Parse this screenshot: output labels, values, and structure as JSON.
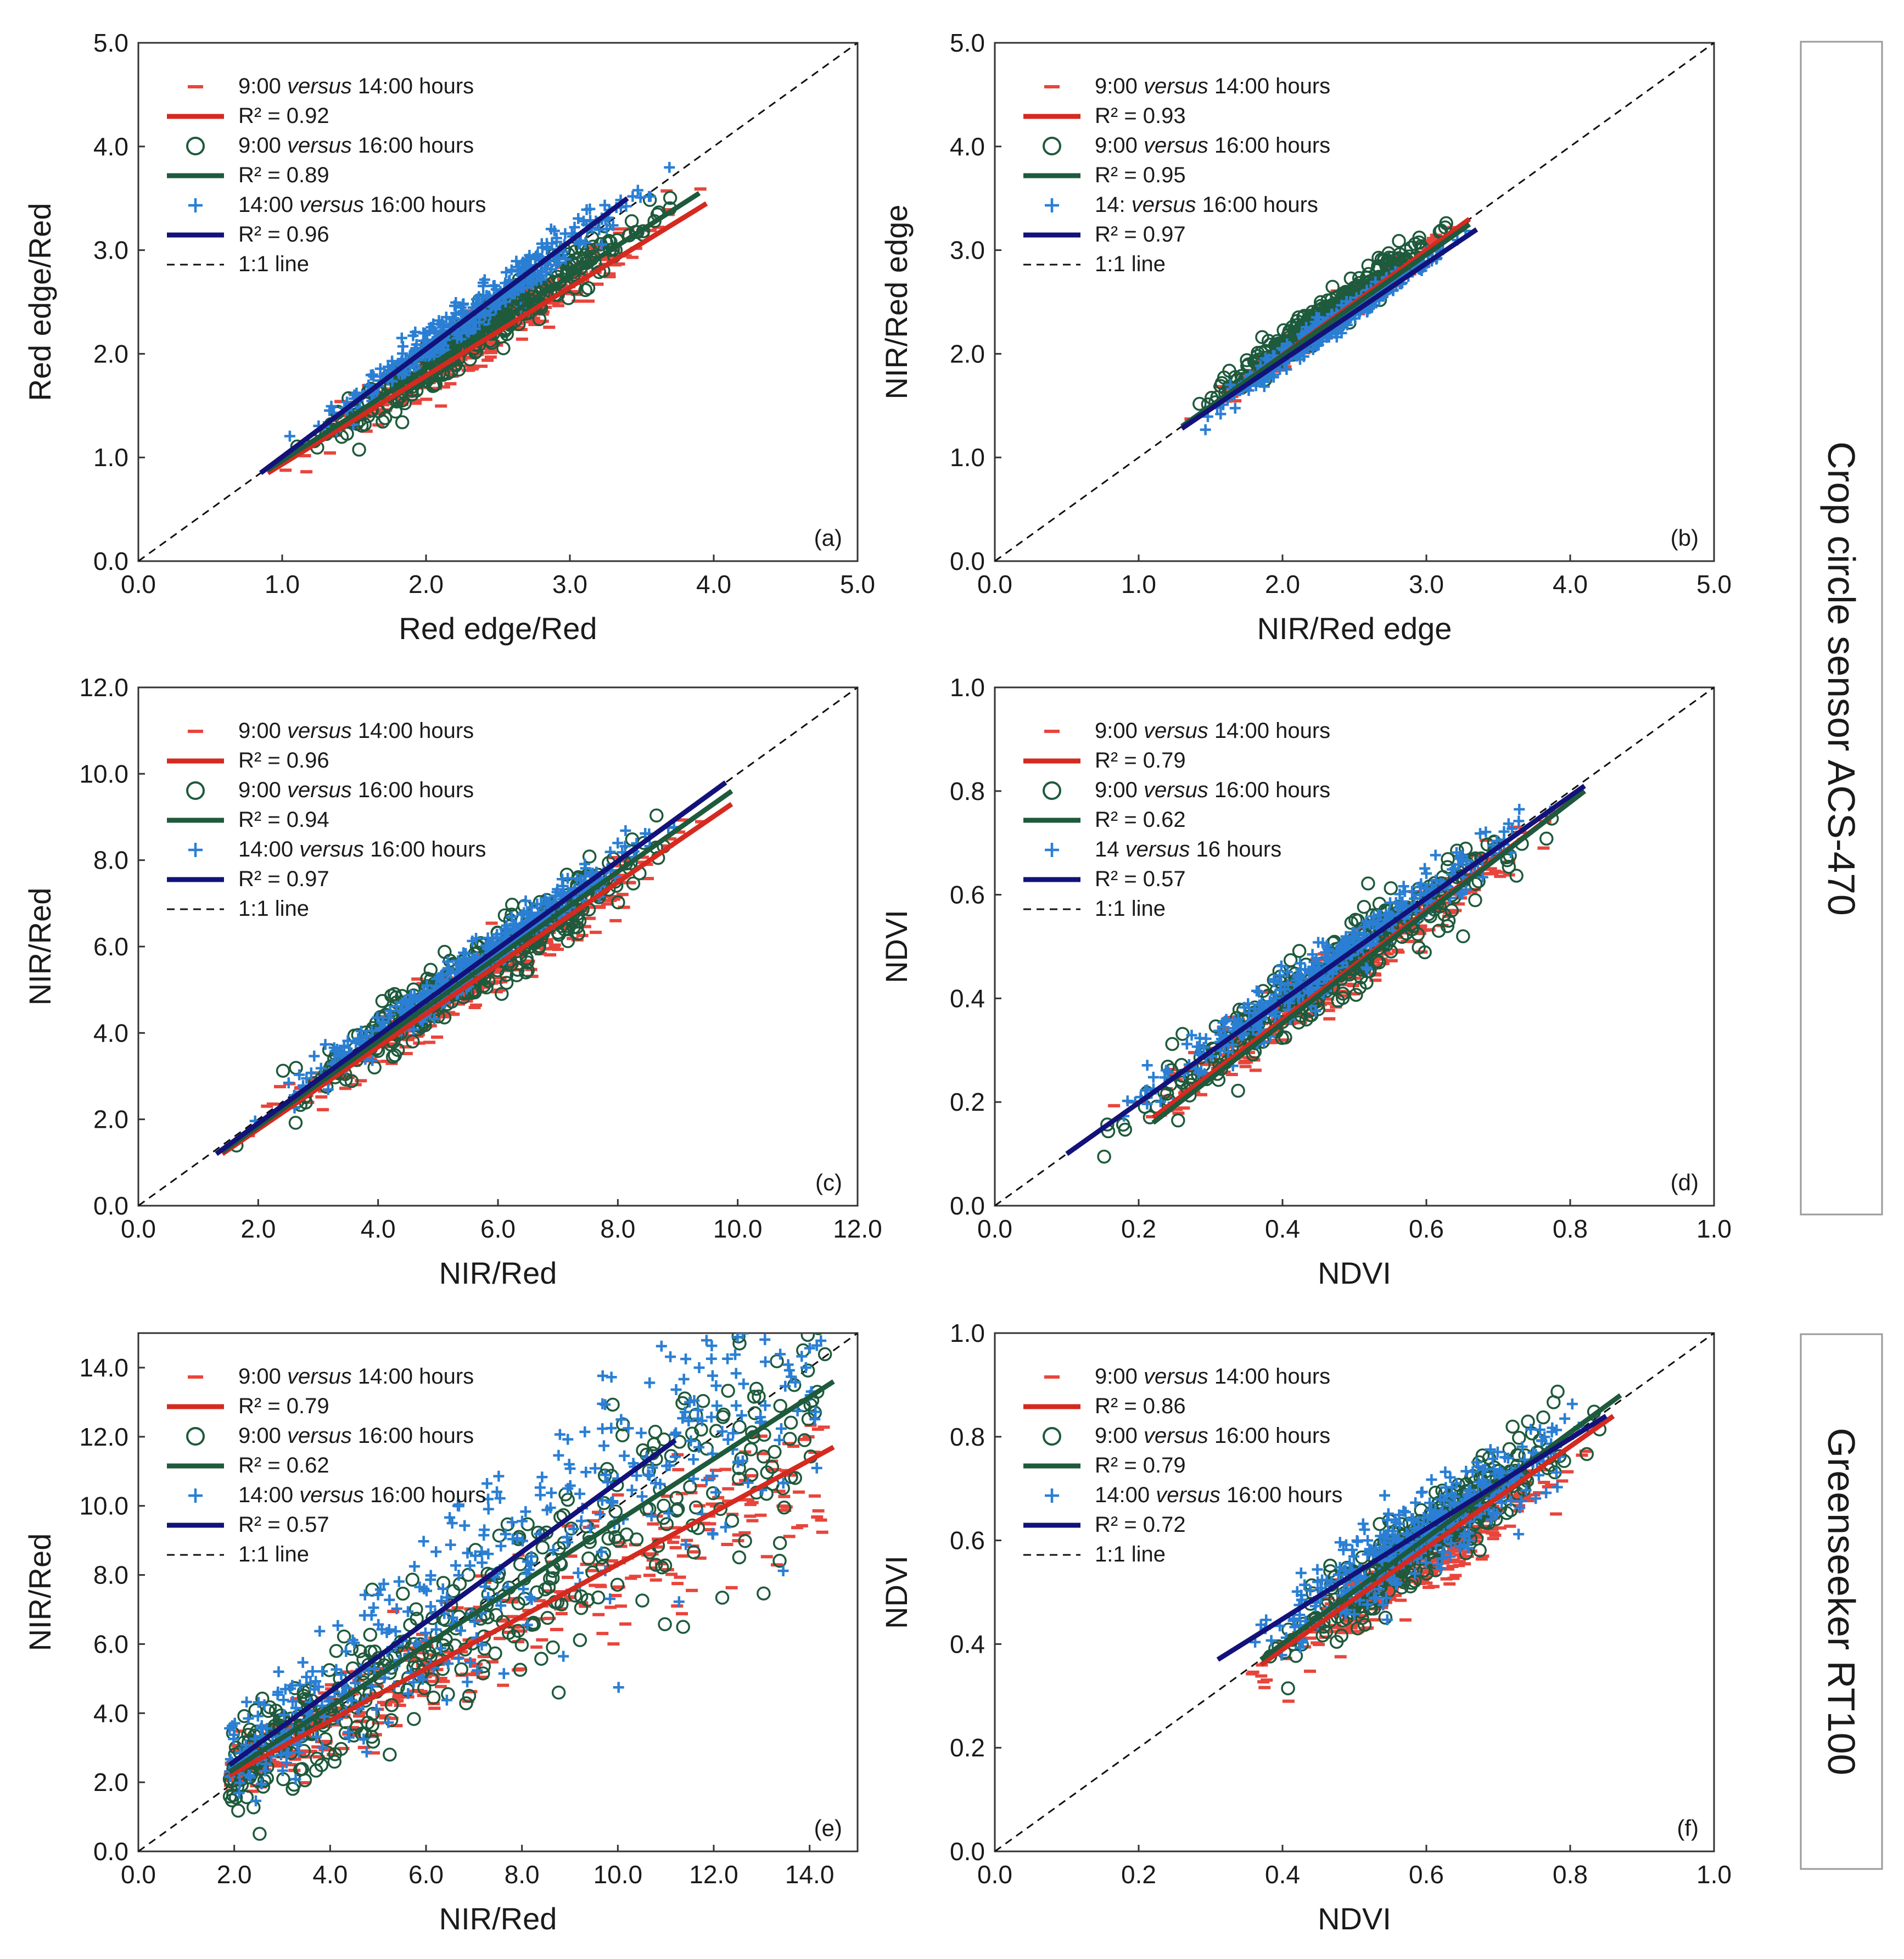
{
  "colors": {
    "series_14": "#e8453c",
    "series_16": "#1e5a3c",
    "series_14_16": "#2a7fd4",
    "fit_14": "#d42a20",
    "fit_16": "#1e5a3c",
    "fit_14_16": "#13127a",
    "axis": "#333333"
  },
  "side_labels": {
    "top": "Crop circle sensor ACS-470",
    "bottom": "Greenseeker RT100"
  },
  "chart_data": [
    {
      "id": "a",
      "panel_label": "(a)",
      "type": "scatter",
      "xlabel": "Red edge/Red",
      "ylabel": "Red edge/Red",
      "xlim": [
        0,
        5
      ],
      "ylim": [
        0,
        5
      ],
      "xticks": [
        "0.0",
        "1.0",
        "2.0",
        "3.0",
        "4.0",
        "5.0"
      ],
      "yticks": [
        "0.0",
        "1.0",
        "2.0",
        "3.0",
        "4.0",
        "5.0"
      ],
      "legend": [
        {
          "marker": "dash",
          "pre": "9:00 ",
          "it": "versus",
          "post": " 14:00 hours"
        },
        {
          "marker": "line-red",
          "pre": "R² = 0.92",
          "it": "",
          "post": ""
        },
        {
          "marker": "circle",
          "pre": "9:00 ",
          "it": "versus",
          "post": " 16:00 hours"
        },
        {
          "marker": "line-green",
          "pre": "R² = 0.89",
          "it": "",
          "post": ""
        },
        {
          "marker": "plus",
          "pre": "14:00 ",
          "it": "versus",
          "post": " 16:00 hours"
        },
        {
          "marker": "line-navy",
          "pre": "R² = 0.96",
          "it": "",
          "post": ""
        },
        {
          "marker": "line-dash",
          "pre": "1:1 line",
          "it": "",
          "post": ""
        }
      ],
      "fits": [
        {
          "name": "9:00 versus 14:00",
          "r2": 0.92,
          "x": [
            0.9,
            3.95
          ],
          "y": [
            0.85,
            3.45
          ]
        },
        {
          "name": "9:00 versus 16:00",
          "r2": 0.89,
          "x": [
            0.9,
            3.9
          ],
          "y": [
            0.88,
            3.55
          ]
        },
        {
          "name": "14:00 versus 16:00",
          "r2": 0.96,
          "x": [
            0.85,
            3.4
          ],
          "y": [
            0.85,
            3.5
          ]
        }
      ],
      "cloud": {
        "xmin": 0.85,
        "xmax": 3.95,
        "slopes": [
          0.88,
          0.92,
          1.02
        ],
        "intercepts": [
          0.05,
          0.04,
          0.02
        ],
        "spread": [
          0.12,
          0.13,
          0.1
        ]
      }
    },
    {
      "id": "b",
      "panel_label": "(b)",
      "type": "scatter",
      "xlabel": "NIR/Red edge",
      "ylabel": "NIR/Red edge",
      "xlim": [
        0,
        5
      ],
      "ylim": [
        0,
        5
      ],
      "xticks": [
        "0.0",
        "1.0",
        "2.0",
        "3.0",
        "4.0",
        "5.0"
      ],
      "yticks": [
        "0.0",
        "1.0",
        "2.0",
        "3.0",
        "4.0",
        "5.0"
      ],
      "legend": [
        {
          "marker": "dash",
          "pre": "9:00 ",
          "it": "versus",
          "post": " 14:00 hours"
        },
        {
          "marker": "line-red",
          "pre": "R² = 0.93",
          "it": "",
          "post": ""
        },
        {
          "marker": "circle",
          "pre": "9:00 ",
          "it": "versus",
          "post": " 16:00 hours"
        },
        {
          "marker": "line-green",
          "pre": "R² = 0.95",
          "it": "",
          "post": ""
        },
        {
          "marker": "plus",
          "pre": "14: ",
          "it": "versus",
          "post": " 16:00 hours"
        },
        {
          "marker": "line-navy",
          "pre": "R² = 0.97",
          "it": "",
          "post": ""
        },
        {
          "marker": "line-dash",
          "pre": "1:1 line",
          "it": "",
          "post": ""
        }
      ],
      "fits": [
        {
          "name": "9:00 versus 14:00",
          "r2": 0.93,
          "x": [
            1.3,
            3.3
          ],
          "y": [
            1.28,
            3.3
          ]
        },
        {
          "name": "9:00 versus 16:00",
          "r2": 0.95,
          "x": [
            1.3,
            3.3
          ],
          "y": [
            1.3,
            3.25
          ]
        },
        {
          "name": "14:00 versus 16:00",
          "r2": 0.97,
          "x": [
            1.3,
            3.35
          ],
          "y": [
            1.28,
            3.2
          ]
        }
      ],
      "cloud": {
        "xmin": 1.3,
        "xmax": 3.35,
        "slopes": [
          1.0,
          1.02,
          0.97
        ],
        "intercepts": [
          0.0,
          0.02,
          0.0
        ],
        "spread": [
          0.07,
          0.08,
          0.06
        ]
      }
    },
    {
      "id": "c",
      "panel_label": "(c)",
      "type": "scatter",
      "xlabel": "NIR/Red",
      "ylabel": "NIR/Red",
      "xlim": [
        0,
        12
      ],
      "ylim": [
        0,
        12
      ],
      "xticks": [
        "0.0",
        "2.0",
        "4.0",
        "6.0",
        "8.0",
        "10.0",
        "12.0"
      ],
      "yticks": [
        "0.0",
        "2.0",
        "4.0",
        "6.0",
        "8.0",
        "10.0",
        "12.0"
      ],
      "legend": [
        {
          "marker": "dash",
          "pre": "9:00 ",
          "it": "versus",
          "post": " 14:00 hours"
        },
        {
          "marker": "line-red",
          "pre": "R² = 0.96",
          "it": "",
          "post": ""
        },
        {
          "marker": "circle",
          "pre": "9:00 ",
          "it": "versus",
          "post": " 16:00 hours"
        },
        {
          "marker": "line-green",
          "pre": "R² = 0.94",
          "it": "",
          "post": ""
        },
        {
          "marker": "plus",
          "pre": "14:00 ",
          "it": "versus",
          "post": " 16:00 hours"
        },
        {
          "marker": "line-navy",
          "pre": "R² = 0.97",
          "it": "",
          "post": ""
        },
        {
          "marker": "line-dash",
          "pre": "1:1 line",
          "it": "",
          "post": ""
        }
      ],
      "fits": [
        {
          "name": "9:00 versus 14:00",
          "r2": 0.96,
          "x": [
            1.4,
            9.9
          ],
          "y": [
            1.2,
            9.3
          ]
        },
        {
          "name": "9:00 versus 16:00",
          "r2": 0.94,
          "x": [
            1.4,
            9.9
          ],
          "y": [
            1.25,
            9.6
          ]
        },
        {
          "name": "14:00 versus 16:00",
          "r2": 0.97,
          "x": [
            1.3,
            9.8
          ],
          "y": [
            1.2,
            9.8
          ]
        }
      ],
      "cloud": {
        "xmin": 1.4,
        "xmax": 9.9,
        "slopes": [
          0.93,
          0.96,
          1.0
        ],
        "intercepts": [
          0.0,
          0.0,
          0.0
        ],
        "spread": [
          0.3,
          0.35,
          0.25
        ]
      }
    },
    {
      "id": "d",
      "panel_label": "(d)",
      "type": "scatter",
      "xlabel": "NDVI",
      "ylabel": "NDVI",
      "xlim": [
        0,
        1
      ],
      "ylim": [
        0,
        1
      ],
      "xticks": [
        "0.0",
        "0.2",
        "0.4",
        "0.6",
        "0.8",
        "1.0"
      ],
      "yticks": [
        "0.0",
        "0.2",
        "0.4",
        "0.6",
        "0.8",
        "1.0"
      ],
      "legend": [
        {
          "marker": "dash",
          "pre": "9:00 ",
          "it": "versus",
          "post": " 14:00 hours"
        },
        {
          "marker": "line-red",
          "pre": "R² = 0.79",
          "it": "",
          "post": ""
        },
        {
          "marker": "circle",
          "pre": "9:00 ",
          "it": "versus",
          "post": " 16:00 hours"
        },
        {
          "marker": "line-green",
          "pre": "R² = 0.62",
          "it": "",
          "post": ""
        },
        {
          "marker": "plus",
          "pre": "14 ",
          "it": "versus",
          "post": " 16 hours"
        },
        {
          "marker": "line-navy",
          "pre": "R² = 0.57",
          "it": "",
          "post": ""
        },
        {
          "marker": "line-dash",
          "pre": "1:1 line",
          "it": "",
          "post": ""
        }
      ],
      "fits": [
        {
          "name": "9:00 versus 14:00",
          "r2": 0.79,
          "x": [
            0.22,
            0.82
          ],
          "y": [
            0.17,
            0.8
          ]
        },
        {
          "name": "9:00 versus 16:00",
          "r2": 0.62,
          "x": [
            0.22,
            0.82
          ],
          "y": [
            0.16,
            0.8
          ]
        },
        {
          "name": "14:00 versus 16:00",
          "r2": 0.57,
          "x": [
            0.1,
            0.82
          ],
          "y": [
            0.1,
            0.81
          ]
        }
      ],
      "cloud": {
        "xmin": 0.1,
        "xmax": 0.82,
        "slopes": [
          0.97,
          1.0,
          1.0
        ],
        "intercepts": [
          -0.02,
          -0.02,
          0.0
        ],
        "spread": [
          0.03,
          0.035,
          0.025
        ]
      }
    },
    {
      "id": "e",
      "panel_label": "(e)",
      "type": "scatter",
      "xlabel": "NIR/Red",
      "ylabel": "NIR/Red",
      "xlim": [
        0,
        15
      ],
      "ylim": [
        0,
        15
      ],
      "xticks": [
        "0.0",
        "2.0",
        "4.0",
        "6.0",
        "8.0",
        "10.0",
        "12.0",
        "14.0"
      ],
      "yticks": [
        "0.0",
        "2.0",
        "4.0",
        "6.0",
        "8.0",
        "10.0",
        "12.0",
        "14.0"
      ],
      "legend": [
        {
          "marker": "dash",
          "pre": "9:00 ",
          "it": "versus",
          "post": " 14:00 hours"
        },
        {
          "marker": "line-red",
          "pre": "R² = 0.79",
          "it": "",
          "post": ""
        },
        {
          "marker": "circle",
          "pre": "9:00 ",
          "it": "versus",
          "post": " 16:00 hours"
        },
        {
          "marker": "line-green",
          "pre": "R² = 0.62",
          "it": "",
          "post": ""
        },
        {
          "marker": "plus",
          "pre": "14:00 ",
          "it": "versus",
          "post": " 16:00 hours"
        },
        {
          "marker": "line-navy",
          "pre": "R² = 0.57",
          "it": "",
          "post": ""
        },
        {
          "marker": "line-dash",
          "pre": "1:1 line",
          "it": "",
          "post": ""
        }
      ],
      "fits": [
        {
          "name": "9:00 versus 14:00",
          "r2": 0.79,
          "x": [
            1.9,
            14.5
          ],
          "y": [
            2.2,
            11.7
          ]
        },
        {
          "name": "9:00 versus 16:00",
          "r2": 0.62,
          "x": [
            1.9,
            14.5
          ],
          "y": [
            2.3,
            13.6
          ]
        },
        {
          "name": "14:00 versus 16:00",
          "r2": 0.57,
          "x": [
            1.9,
            11.2
          ],
          "y": [
            2.5,
            11.9
          ]
        }
      ],
      "cloud": {
        "xmin": 1.9,
        "xmax": 14.6,
        "slopes": [
          0.75,
          0.85,
          1.0
        ],
        "intercepts": [
          0.8,
          0.7,
          0.6
        ],
        "spread": [
          0.6,
          0.9,
          1.1
        ]
      }
    },
    {
      "id": "f",
      "panel_label": "(f)",
      "type": "scatter",
      "xlabel": "NDVI",
      "ylabel": "NDVI",
      "xlim": [
        0,
        1
      ],
      "ylim": [
        0,
        1
      ],
      "xticks": [
        "0.0",
        "0.2",
        "0.4",
        "0.6",
        "0.8",
        "1.0"
      ],
      "yticks": [
        "0.0",
        "0.2",
        "0.4",
        "0.6",
        "0.8",
        "1.0"
      ],
      "legend": [
        {
          "marker": "dash",
          "pre": "9:00 ",
          "it": "versus",
          "post": " 14:00 hours"
        },
        {
          "marker": "line-red",
          "pre": "R² = 0.86",
          "it": "",
          "post": ""
        },
        {
          "marker": "circle",
          "pre": "9:00 ",
          "it": "versus",
          "post": " 16:00 hours"
        },
        {
          "marker": "line-green",
          "pre": "R² = 0.79",
          "it": "",
          "post": ""
        },
        {
          "marker": "plus",
          "pre": "14:00 ",
          "it": "versus",
          "post": " 16:00 hours"
        },
        {
          "marker": "line-navy",
          "pre": "R² = 0.72",
          "it": "",
          "post": ""
        },
        {
          "marker": "line-dash",
          "pre": "1:1 line",
          "it": "",
          "post": ""
        }
      ],
      "fits": [
        {
          "name": "9:00 versus 14:00",
          "r2": 0.86,
          "x": [
            0.37,
            0.86
          ],
          "y": [
            0.36,
            0.84
          ]
        },
        {
          "name": "9:00 versus 16:00",
          "r2": 0.79,
          "x": [
            0.37,
            0.87
          ],
          "y": [
            0.37,
            0.88
          ]
        },
        {
          "name": "14:00 versus 16:00",
          "r2": 0.72,
          "x": [
            0.31,
            0.85
          ],
          "y": [
            0.37,
            0.84
          ]
        }
      ],
      "cloud": {
        "xmin": 0.31,
        "xmax": 0.87,
        "slopes": [
          0.9,
          1.0,
          0.9
        ],
        "intercepts": [
          0.02,
          0.0,
          0.08
        ],
        "spread": [
          0.03,
          0.04,
          0.04
        ]
      }
    }
  ]
}
